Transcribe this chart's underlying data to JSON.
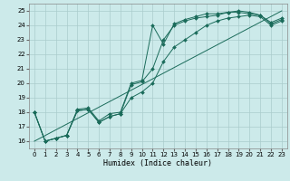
{
  "xlabel": "Humidex (Indice chaleur)",
  "bg_color": "#cceaea",
  "grid_color": "#aacccc",
  "line_color": "#1a6b5a",
  "xlim": [
    -0.5,
    23.5
  ],
  "ylim": [
    15.5,
    25.5
  ],
  "xticks": [
    0,
    1,
    2,
    3,
    4,
    5,
    6,
    7,
    8,
    9,
    10,
    11,
    12,
    13,
    14,
    15,
    16,
    17,
    18,
    19,
    20,
    21,
    22,
    23
  ],
  "yticks": [
    16,
    17,
    18,
    19,
    20,
    21,
    22,
    23,
    24,
    25
  ],
  "line1_x": [
    0,
    1,
    2,
    3,
    4,
    5,
    6,
    7,
    8,
    9,
    10,
    11,
    12,
    13,
    14,
    15,
    16,
    17,
    18,
    19,
    20,
    21,
    22,
    23
  ],
  "line1_y": [
    18,
    16,
    16.2,
    16.4,
    18.2,
    18.3,
    17.4,
    17.9,
    18.0,
    20.0,
    20.2,
    24.0,
    22.7,
    24.1,
    24.4,
    24.6,
    24.8,
    24.8,
    24.9,
    25.0,
    24.9,
    24.7,
    24.2,
    24.5
  ],
  "line2_x": [
    0,
    1,
    2,
    3,
    4,
    5,
    6,
    7,
    8,
    9,
    10,
    11,
    12,
    13,
    14,
    15,
    16,
    17,
    18,
    19,
    20,
    21,
    22,
    23
  ],
  "line2_y": [
    18,
    16,
    16.2,
    16.4,
    18.1,
    18.2,
    17.3,
    17.7,
    17.9,
    19.9,
    20.1,
    21.0,
    23.0,
    24.0,
    24.3,
    24.5,
    24.6,
    24.7,
    24.9,
    24.9,
    24.8,
    24.7,
    24.1,
    24.4
  ],
  "line3_x": [
    0,
    1,
    2,
    3,
    4,
    5,
    6,
    7,
    8,
    9,
    10,
    11,
    12,
    13,
    14,
    15,
    16,
    17,
    18,
    19,
    20,
    21,
    22,
    23
  ],
  "line3_y": [
    18,
    16,
    16.2,
    16.4,
    18.1,
    18.2,
    17.3,
    17.7,
    17.9,
    19.0,
    19.4,
    20.0,
    21.5,
    22.5,
    23.0,
    23.5,
    24.0,
    24.3,
    24.5,
    24.6,
    24.7,
    24.6,
    24.0,
    24.3
  ],
  "line4_x": [
    0,
    23
  ],
  "line4_y": [
    16,
    25
  ]
}
